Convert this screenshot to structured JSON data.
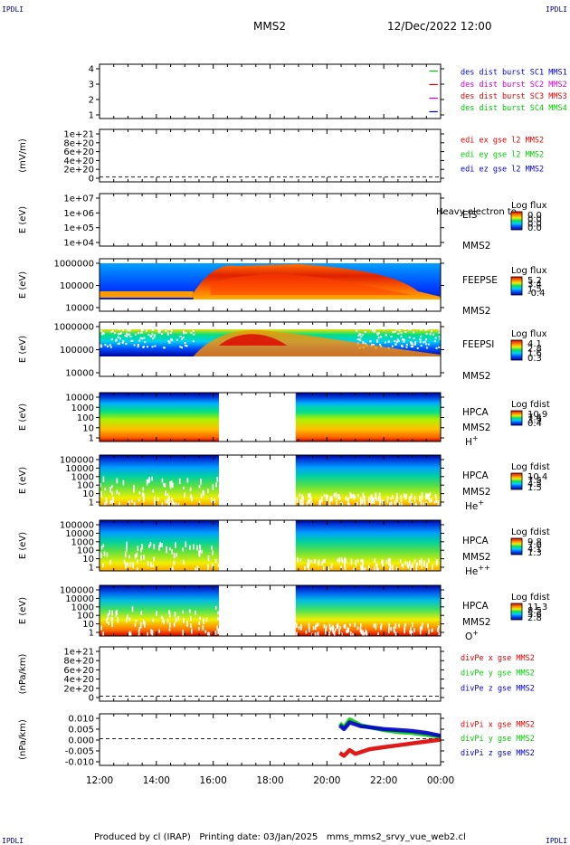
{
  "corner_label": "IPDLI",
  "header": {
    "spacecraft": "MMS2",
    "datetime": "12/Dec/2022 12:00"
  },
  "footer": "Produced by cl (IRAP)   Printing date: 03/Jan/2025   mms_mms2_srvy_vue_web2.cl",
  "time_axis": {
    "ticks": [
      "12:00",
      "14:00",
      "16:00",
      "18:00",
      "20:00",
      "22:00",
      "00:00"
    ],
    "start_hour": 12,
    "end_hour": 24
  },
  "colors": {
    "red": "#dd0000",
    "green": "#00cc00",
    "blue": "#0000cc",
    "magenta": "#cc00cc"
  },
  "chart_data": [
    {
      "type": "line",
      "name": "burst",
      "yticks": [
        "4",
        "3",
        "2",
        "1"
      ],
      "ylim": [
        0.5,
        4.5
      ],
      "legend": [
        {
          "text": "des dist burst SC1 MMS1",
          "color": "#0000cc"
        },
        {
          "text": "des dist burst SC2 MMS2",
          "color": "#cc00cc"
        },
        {
          "text": "des dist burst SC3 MMS3",
          "color": "#dd0000"
        },
        {
          "text": "des dist burst SC4 MMS4",
          "color": "#00cc00"
        }
      ],
      "segments": [
        {
          "level": 4,
          "color": "#00cc00",
          "t0": 23.6,
          "t1": 23.9
        },
        {
          "level": 3,
          "color": "#dd0000",
          "t0": 23.6,
          "t1": 23.9
        },
        {
          "level": 2,
          "color": "#cc00cc",
          "t0": 23.6,
          "t1": 23.9
        },
        {
          "level": 1,
          "color": "#0000cc",
          "t0": 23.6,
          "t1": 23.9
        }
      ]
    },
    {
      "type": "line",
      "name": "edi",
      "ylabel": "(mV/m)",
      "yticks": [
        "1e+21",
        "8e+20",
        "6e+20",
        "4e+20",
        "2e+20",
        "0"
      ],
      "ylim": [
        -1e+20,
        1e+21
      ],
      "legend": [
        {
          "text": "edi ex gse l2 MMS2",
          "color": "#dd0000"
        },
        {
          "text": "edi ey gse l2 MMS2",
          "color": "#00cc00"
        },
        {
          "text": "edi ez gse l2 MMS2",
          "color": "#0000cc"
        }
      ]
    },
    {
      "type": "heatmap",
      "name": "eis",
      "ylabel": "E (eV)",
      "yticks": [
        "1e+07",
        "1e+06",
        "1e+05",
        "1e+04"
      ],
      "instrument": "EIS",
      "spacecraft": "MMS2",
      "overlay_text": "Heavy electron to",
      "cbar_title": "Log flux",
      "cbar_ticks": [
        "0.0",
        "0.0",
        "0.0",
        "0.0"
      ]
    },
    {
      "type": "heatmap",
      "name": "feepse",
      "ylabel": "E (eV)",
      "yticks": [
        "1000000",
        "100000",
        "10000"
      ],
      "instrument": "FEEPSE",
      "spacecraft": "MMS2",
      "cbar_title": "Log flux",
      "cbar_ticks": [
        "5.2",
        "3.4",
        "1.5",
        "-0.4"
      ]
    },
    {
      "type": "heatmap",
      "name": "feepsi",
      "ylabel": "E (eV)",
      "yticks": [
        "1000000",
        "100000",
        "10000"
      ],
      "instrument": "FEEPSI",
      "spacecraft": "MMS2",
      "cbar_title": "Log flux",
      "cbar_ticks": [
        "4.1",
        "2.8",
        "1.6",
        "0.3"
      ]
    },
    {
      "type": "heatmap",
      "name": "hpca-h",
      "ylabel": "E (eV)",
      "yticks": [
        "10000",
        "1000",
        "100",
        "10",
        "1"
      ],
      "instrument": "HPCA",
      "spacecraft": "MMS2",
      "species": "H+",
      "cbar_title": "Log fdist",
      "cbar_ticks": [
        "10.9",
        "7.4",
        "3.9",
        "0.4"
      ],
      "gap": [
        16.2,
        18.9
      ]
    },
    {
      "type": "heatmap",
      "name": "hpca-he",
      "ylabel": "E (eV)",
      "yticks": [
        "100000",
        "10000",
        "1000",
        "100",
        "10",
        "1"
      ],
      "instrument": "HPCA",
      "spacecraft": "MMS2",
      "species": "He+",
      "cbar_title": "Log fdist",
      "cbar_ticks": [
        "10.4",
        "7.5",
        "4.5",
        "1.5"
      ],
      "gap": [
        16.2,
        18.9
      ]
    },
    {
      "type": "heatmap",
      "name": "hpca-hepp",
      "ylabel": "E (eV)",
      "yticks": [
        "100000",
        "10000",
        "1000",
        "100",
        "10",
        "1"
      ],
      "instrument": "HPCA",
      "spacecraft": "MMS2",
      "species": "He++",
      "cbar_title": "Log fdist",
      "cbar_ticks": [
        "9.8",
        "7.0",
        "4.1",
        "1.3"
      ],
      "gap": [
        16.2,
        18.9
      ]
    },
    {
      "type": "heatmap",
      "name": "hpca-o",
      "ylabel": "E (eV)",
      "yticks": [
        "100000",
        "10000",
        "1000",
        "100",
        "10",
        "1"
      ],
      "instrument": "HPCA",
      "spacecraft": "MMS2",
      "species": "O+",
      "cbar_title": "Log fdist",
      "cbar_ticks": [
        "11.3",
        "8.5",
        "5.6",
        "2.8"
      ],
      "gap": [
        16.2,
        18.9
      ]
    },
    {
      "type": "line",
      "name": "divpe",
      "ylabel": "(nPa/km)",
      "yticks": [
        "1e+21",
        "8e+20",
        "6e+20",
        "4e+20",
        "2e+20",
        "0"
      ],
      "ylim": [
        -1e+20,
        1e+21
      ],
      "legend": [
        {
          "text": "divPe x gse MMS2",
          "color": "#dd0000"
        },
        {
          "text": "divPe y gse MMS2",
          "color": "#00cc00"
        },
        {
          "text": "divPe z gse MMS2",
          "color": "#0000cc"
        }
      ]
    },
    {
      "type": "line",
      "name": "divpi",
      "ylabel": "(nPa/km)",
      "yticks": [
        "0.010",
        "0.005",
        "0.000",
        "-0.005",
        "-0.010"
      ],
      "ylim": [
        -0.014,
        0.013
      ],
      "legend": [
        {
          "text": "divPi x gse MMS2",
          "color": "#dd0000"
        },
        {
          "text": "divPi y gse MMS2",
          "color": "#00cc00"
        },
        {
          "text": "divPi z gse MMS2",
          "color": "#0000cc"
        }
      ],
      "series": [
        {
          "color": "#dd0000",
          "x": [
            20.45,
            20.6,
            20.8,
            21.0,
            21.2,
            21.5,
            22.0,
            22.5,
            23.0,
            23.5,
            24.0
          ],
          "y": [
            -0.0075,
            -0.009,
            -0.006,
            -0.008,
            -0.007,
            -0.0055,
            -0.0045,
            -0.0035,
            -0.0025,
            -0.0015,
            -0.0005
          ]
        },
        {
          "color": "#00cc00",
          "x": [
            20.45,
            20.6,
            20.8,
            21.0,
            21.2,
            21.5,
            22.0,
            22.5,
            23.0,
            23.5,
            24.0
          ],
          "y": [
            0.008,
            0.006,
            0.01,
            0.0085,
            0.007,
            0.006,
            0.0045,
            0.0035,
            0.003,
            0.002,
            0.001
          ]
        },
        {
          "color": "#0000cc",
          "x": [
            20.45,
            20.6,
            20.8,
            21.0,
            21.2,
            21.5,
            22.0,
            22.5,
            23.0,
            23.5,
            24.0
          ],
          "y": [
            0.007,
            0.005,
            0.0085,
            0.0075,
            0.0065,
            0.006,
            0.005,
            0.0045,
            0.004,
            0.003,
            0.0015
          ]
        }
      ]
    }
  ]
}
